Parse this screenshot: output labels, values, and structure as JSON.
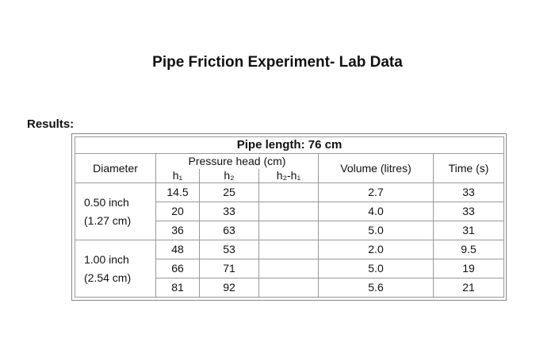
{
  "title": "Pipe Friction Experiment- Lab Data",
  "results_label": "Results:",
  "table": {
    "pipe_length": "Pipe length: 76 cm",
    "headers": {
      "diameter": "Diameter",
      "pressure_head": "Pressure head (cm)",
      "h1": "h₁",
      "h2": "h₂",
      "h2h1": "h₂-h₁",
      "volume": "Volume (litres)",
      "time": "Time (s)"
    },
    "groups": [
      {
        "diameter_line1": "0.50 inch",
        "diameter_line2": "(1.27 cm)",
        "rows": [
          {
            "h1": "14.5",
            "h2": "25",
            "h2h1": "",
            "volume": "2.7",
            "time": "33"
          },
          {
            "h1": "20",
            "h2": "33",
            "h2h1": "",
            "volume": "4.0",
            "time": "33"
          },
          {
            "h1": "36",
            "h2": "63",
            "h2h1": "",
            "volume": "5.0",
            "time": "31"
          }
        ]
      },
      {
        "diameter_line1": "1.00 inch",
        "diameter_line2": "(2.54 cm)",
        "rows": [
          {
            "h1": "48",
            "h2": "53",
            "h2h1": "",
            "volume": "2.0",
            "time": "9.5"
          },
          {
            "h1": "66",
            "h2": "71",
            "h2h1": "",
            "volume": "5.0",
            "time": "19"
          },
          {
            "h1": "81",
            "h2": "92",
            "h2h1": "",
            "volume": "5.6",
            "time": "21"
          }
        ]
      }
    ]
  }
}
